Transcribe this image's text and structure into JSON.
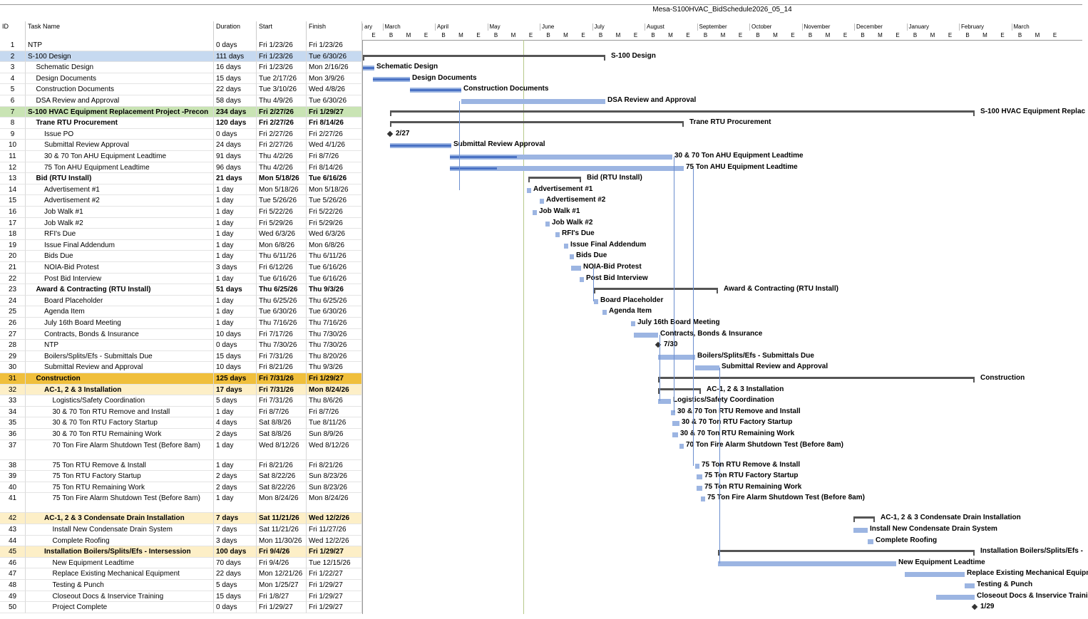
{
  "title": "Mesa-S100HVAC_BidSchedule2026_05_14",
  "columns": {
    "id": "ID",
    "name": "Task Name",
    "duration": "Duration",
    "start": "Start",
    "finish": "Finish"
  },
  "months": [
    "ary",
    "March",
    "April",
    "May",
    "June",
    "July",
    "August",
    "September",
    "October",
    "November",
    "December",
    "January",
    "February",
    "March"
  ],
  "sub_labels": [
    "B",
    "M",
    "E"
  ],
  "tasks": [
    {
      "id": "1",
      "name": "NTP",
      "dur": "0 days",
      "start": "Fri 1/23/26",
      "finish": "Fri 1/23/26",
      "lvl": 0
    },
    {
      "id": "2",
      "name": "S-100 Design",
      "dur": "111 days",
      "start": "Fri 1/23/26",
      "finish": "Tue 6/30/26",
      "lvl": 0,
      "bold": false,
      "bg": "#c6d9f0"
    },
    {
      "id": "3",
      "name": "Schematic Design",
      "dur": "16 days",
      "start": "Fri 1/23/26",
      "finish": "Mon 2/16/26",
      "lvl": 1
    },
    {
      "id": "4",
      "name": "Design Documents",
      "dur": "15 days",
      "start": "Tue 2/17/26",
      "finish": "Mon 3/9/26",
      "lvl": 1
    },
    {
      "id": "5",
      "name": "Construction Documents",
      "dur": "22 days",
      "start": "Tue 3/10/26",
      "finish": "Wed 4/8/26",
      "lvl": 1
    },
    {
      "id": "6",
      "name": "DSA Review and Approval",
      "dur": "58 days",
      "start": "Thu 4/9/26",
      "finish": "Tue 6/30/26",
      "lvl": 1
    },
    {
      "id": "7",
      "name": "S-100 HVAC Equipment Replacement Project -Precon",
      "dur": "234 days",
      "start": "Fri 2/27/26",
      "finish": "Fri 1/29/27",
      "lvl": 0,
      "bold": true,
      "bg": "#c9e4b4"
    },
    {
      "id": "8",
      "name": "Trane RTU Procurement",
      "dur": "120 days",
      "start": "Fri 2/27/26",
      "finish": "Fri 8/14/26",
      "lvl": 1,
      "bold": true
    },
    {
      "id": "9",
      "name": "Issue PO",
      "dur": "0 days",
      "start": "Fri 2/27/26",
      "finish": "Fri 2/27/26",
      "lvl": 2
    },
    {
      "id": "10",
      "name": "Submittal Review Approval",
      "dur": "24 days",
      "start": "Fri 2/27/26",
      "finish": "Wed 4/1/26",
      "lvl": 2
    },
    {
      "id": "11",
      "name": "30 & 70 Ton AHU Equipment Leadtime",
      "dur": "91 days",
      "start": "Thu 4/2/26",
      "finish": "Fri 8/7/26",
      "lvl": 2
    },
    {
      "id": "12",
      "name": "75 Ton AHU Equipment Leadtime",
      "dur": "96 days",
      "start": "Thu 4/2/26",
      "finish": "Fri 8/14/26",
      "lvl": 2
    },
    {
      "id": "13",
      "name": "Bid (RTU Install)",
      "dur": "21 days",
      "start": "Mon 5/18/26",
      "finish": "Tue 6/16/26",
      "lvl": 1,
      "bold": true
    },
    {
      "id": "14",
      "name": "Advertisement #1",
      "dur": "1 day",
      "start": "Mon 5/18/26",
      "finish": "Mon 5/18/26",
      "lvl": 2
    },
    {
      "id": "15",
      "name": "Advertisement #2",
      "dur": "1 day",
      "start": "Tue 5/26/26",
      "finish": "Tue 5/26/26",
      "lvl": 2
    },
    {
      "id": "16",
      "name": "Job Walk #1",
      "dur": "1 day",
      "start": "Fri 5/22/26",
      "finish": "Fri 5/22/26",
      "lvl": 2
    },
    {
      "id": "17",
      "name": "Job Walk #2",
      "dur": "1 day",
      "start": "Fri 5/29/26",
      "finish": "Fri 5/29/26",
      "lvl": 2
    },
    {
      "id": "18",
      "name": "RFI's Due",
      "dur": "1 day",
      "start": "Wed 6/3/26",
      "finish": "Wed 6/3/26",
      "lvl": 2
    },
    {
      "id": "19",
      "name": "Issue Final Addendum",
      "dur": "1 day",
      "start": "Mon 6/8/26",
      "finish": "Mon 6/8/26",
      "lvl": 2
    },
    {
      "id": "20",
      "name": "Bids Due",
      "dur": "1 day",
      "start": "Thu 6/11/26",
      "finish": "Thu 6/11/26",
      "lvl": 2
    },
    {
      "id": "21",
      "name": "NOIA-Bid Protest",
      "dur": "3 days",
      "start": "Fri 6/12/26",
      "finish": "Tue 6/16/26",
      "lvl": 2
    },
    {
      "id": "22",
      "name": "Post Bid Interview",
      "dur": "1 day",
      "start": "Tue 6/16/26",
      "finish": "Tue 6/16/26",
      "lvl": 2
    },
    {
      "id": "23",
      "name": "Award & Contracting (RTU Install)",
      "dur": "51 days",
      "start": "Thu 6/25/26",
      "finish": "Thu 9/3/26",
      "lvl": 1,
      "bold": true
    },
    {
      "id": "24",
      "name": "Board Placeholder",
      "dur": "1 day",
      "start": "Thu 6/25/26",
      "finish": "Thu 6/25/26",
      "lvl": 2
    },
    {
      "id": "25",
      "name": "Agenda Item",
      "dur": "1 day",
      "start": "Tue 6/30/26",
      "finish": "Tue 6/30/26",
      "lvl": 2
    },
    {
      "id": "26",
      "name": "July 16th Board Meeting",
      "dur": "1 day",
      "start": "Thu 7/16/26",
      "finish": "Thu 7/16/26",
      "lvl": 2
    },
    {
      "id": "27",
      "name": "Contracts, Bonds & Insurance",
      "dur": "10 days",
      "start": "Fri 7/17/26",
      "finish": "Thu 7/30/26",
      "lvl": 2
    },
    {
      "id": "28",
      "name": "NTP",
      "dur": "0 days",
      "start": "Thu 7/30/26",
      "finish": "Thu 7/30/26",
      "lvl": 2
    },
    {
      "id": "29",
      "name": "Boilers/Splits/Efs - Submittals Due",
      "dur": "15 days",
      "start": "Fri 7/31/26",
      "finish": "Thu 8/20/26",
      "lvl": 2
    },
    {
      "id": "30",
      "name": "Submittal Review and Approval",
      "dur": "10 days",
      "start": "Fri 8/21/26",
      "finish": "Thu 9/3/26",
      "lvl": 2
    },
    {
      "id": "31",
      "name": "Construction",
      "dur": "125 days",
      "start": "Fri 7/31/26",
      "finish": "Fri 1/29/27",
      "lvl": 1,
      "bold": true,
      "bg": "#f0bf3c"
    },
    {
      "id": "32",
      "name": "AC-1, 2 & 3 Installation",
      "dur": "17 days",
      "start": "Fri 7/31/26",
      "finish": "Mon 8/24/26",
      "lvl": 2,
      "bold": true,
      "bg": "#fdefc7"
    },
    {
      "id": "33",
      "name": "Logistics/Safety Coordination",
      "dur": "5 days",
      "start": "Fri 7/31/26",
      "finish": "Thu 8/6/26",
      "lvl": 3
    },
    {
      "id": "34",
      "name": "30 & 70 Ton RTU Remove and Install",
      "dur": "1 day",
      "start": "Fri 8/7/26",
      "finish": "Fri 8/7/26",
      "lvl": 3
    },
    {
      "id": "35",
      "name": "30 & 70 Ton RTU Factory Startup",
      "dur": "4 days",
      "start": "Sat 8/8/26",
      "finish": "Tue 8/11/26",
      "lvl": 3
    },
    {
      "id": "36",
      "name": "30 & 70 Ton RTU Remaining Work",
      "dur": "2 days",
      "start": "Sat 8/8/26",
      "finish": "Sun 8/9/26",
      "lvl": 3
    },
    {
      "id": "37",
      "name": "70 Ton Fire Alarm Shutdown Test (Before 8am)",
      "dur": "1 day",
      "start": "Wed 8/12/26",
      "finish": "Wed 8/12/26",
      "lvl": 3,
      "tall": true
    },
    {
      "id": "38",
      "name": "75 Ton RTU Remove & Install",
      "dur": "1 day",
      "start": "Fri 8/21/26",
      "finish": "Fri 8/21/26",
      "lvl": 3
    },
    {
      "id": "39",
      "name": "75 Ton RTU Factory Startup",
      "dur": "2 days",
      "start": "Sat 8/22/26",
      "finish": "Sun 8/23/26",
      "lvl": 3
    },
    {
      "id": "40",
      "name": "75 Ton RTU Remaining Work",
      "dur": "2 days",
      "start": "Sat 8/22/26",
      "finish": "Sun 8/23/26",
      "lvl": 3
    },
    {
      "id": "41",
      "name": "75 Ton Fire Alarm Shutdown Test (Before 8am)",
      "dur": "1 day",
      "start": "Mon 8/24/26",
      "finish": "Mon 8/24/26",
      "lvl": 3,
      "tall": true
    },
    {
      "id": "42",
      "name": "AC-1, 2 & 3 Condensate Drain Installation",
      "dur": "7 days",
      "start": "Sat 11/21/26",
      "finish": "Wed 12/2/26",
      "lvl": 2,
      "bold": true,
      "bg": "#fdefc7"
    },
    {
      "id": "43",
      "name": "Install New Condensate Drain System",
      "dur": "7 days",
      "start": "Sat 11/21/26",
      "finish": "Fri 11/27/26",
      "lvl": 3
    },
    {
      "id": "44",
      "name": "Complete Roofing",
      "dur": "3 days",
      "start": "Mon 11/30/26",
      "finish": "Wed 12/2/26",
      "lvl": 3
    },
    {
      "id": "45",
      "name": "Installation Boilers/Splits/Efs - Intersession",
      "dur": "100 days",
      "start": "Fri 9/4/26",
      "finish": "Fri 1/29/27",
      "lvl": 2,
      "bold": true,
      "bg": "#fdefc7"
    },
    {
      "id": "46",
      "name": "New Equipment Leadtime",
      "dur": "70 days",
      "start": "Fri 9/4/26",
      "finish": "Tue 12/15/26",
      "lvl": 3
    },
    {
      "id": "47",
      "name": "Replace Existing Mechanical Equipment",
      "dur": "22 days",
      "start": "Mon 12/21/26",
      "finish": "Fri 1/22/27",
      "lvl": 3
    },
    {
      "id": "48",
      "name": "Testing & Punch",
      "dur": "5 days",
      "start": "Mon 1/25/27",
      "finish": "Fri 1/29/27",
      "lvl": 3
    },
    {
      "id": "49",
      "name": "Closeout Docs & Inservice Training",
      "dur": "15 days",
      "start": "Fri 1/8/27",
      "finish": "Fri 1/29/27",
      "lvl": 3
    },
    {
      "id": "50",
      "name": "Project Complete",
      "dur": "0 days",
      "start": "Fri 1/29/27",
      "finish": "Fri 1/29/27",
      "lvl": 3
    }
  ],
  "gantt": [
    {
      "row": 2,
      "type": "sum",
      "x0": 0,
      "x1": 340,
      "label": "S-100 Design"
    },
    {
      "row": 3,
      "type": "bar",
      "x0": 0,
      "x1": 16,
      "p": 1,
      "label": "Schematic Design"
    },
    {
      "row": 4,
      "type": "bar",
      "x0": 14,
      "x1": 66,
      "p": 1,
      "label": "Design Documents"
    },
    {
      "row": 5,
      "type": "bar",
      "x0": 66,
      "x1": 138,
      "p": 1,
      "label": "Construction Documents"
    },
    {
      "row": 6,
      "type": "bar",
      "x0": 138,
      "x1": 340,
      "p": 0,
      "label": "DSA Review and Approval"
    },
    {
      "row": 7,
      "type": "sum",
      "x0": 38,
      "x1": 858,
      "label": "S-100 HVAC Equipment Replac"
    },
    {
      "row": 8,
      "type": "sum",
      "x0": 38,
      "x1": 450,
      "label": "Trane RTU Procurement"
    },
    {
      "row": 9,
      "type": "ms",
      "x0": 38,
      "label": "2/27"
    },
    {
      "row": 10,
      "type": "bar",
      "x0": 38,
      "x1": 124,
      "p": 1,
      "label": "Submittal Review Approval"
    },
    {
      "row": 11,
      "type": "bar",
      "x0": 122,
      "x1": 434,
      "p": 0.3,
      "label": "30 & 70 Ton AHU Equipment Leadtime"
    },
    {
      "row": 12,
      "type": "bar",
      "x0": 122,
      "x1": 450,
      "p": 0.2,
      "label": "75 Ton AHU Equipment Leadtime"
    },
    {
      "row": 13,
      "type": "sum",
      "x0": 232,
      "x1": 306,
      "label": "Bid (RTU Install)"
    },
    {
      "row": 14,
      "type": "bar",
      "x0": 230,
      "x1": 236,
      "p": 0,
      "label": "Advertisement #1"
    },
    {
      "row": 15,
      "type": "bar",
      "x0": 248,
      "x1": 254,
      "p": 0,
      "label": "Advertisement #2"
    },
    {
      "row": 16,
      "type": "bar",
      "x0": 238,
      "x1": 244,
      "p": 0,
      "label": "Job Walk #1"
    },
    {
      "row": 17,
      "type": "bar",
      "x0": 256,
      "x1": 262,
      "p": 0,
      "label": "Job Walk #2"
    },
    {
      "row": 18,
      "type": "bar",
      "x0": 270,
      "x1": 276,
      "p": 0,
      "label": "RFI's Due"
    },
    {
      "row": 19,
      "type": "bar",
      "x0": 282,
      "x1": 288,
      "p": 0,
      "label": "Issue Final Addendum"
    },
    {
      "row": 20,
      "type": "bar",
      "x0": 290,
      "x1": 296,
      "p": 0,
      "label": "Bids Due"
    },
    {
      "row": 21,
      "type": "bar",
      "x0": 292,
      "x1": 306,
      "p": 0,
      "label": "NOIA-Bid Protest"
    },
    {
      "row": 22,
      "type": "bar",
      "x0": 304,
      "x1": 310,
      "p": 0,
      "label": "Post Bid Interview"
    },
    {
      "row": 23,
      "type": "sum",
      "x0": 324,
      "x1": 498,
      "label": "Award & Contracting (RTU Install)"
    },
    {
      "row": 24,
      "type": "bar",
      "x0": 324,
      "x1": 330,
      "p": 0,
      "label": "Board Placeholder"
    },
    {
      "row": 25,
      "type": "bar",
      "x0": 336,
      "x1": 342,
      "p": 0,
      "label": "Agenda Item"
    },
    {
      "row": 26,
      "type": "bar",
      "x0": 376,
      "x1": 382,
      "p": 0,
      "label": "July 16th Board Meeting"
    },
    {
      "row": 27,
      "type": "bar",
      "x0": 380,
      "x1": 414,
      "p": 0,
      "label": "Contracts, Bonds & Insurance"
    },
    {
      "row": 28,
      "type": "ms",
      "x0": 414,
      "label": "7/30"
    },
    {
      "row": 29,
      "type": "bar",
      "x0": 414,
      "x1": 466,
      "p": 0,
      "label": "Boilers/Splits/Efs - Submittals Due"
    },
    {
      "row": 30,
      "type": "bar",
      "x0": 466,
      "x1": 500,
      "p": 0,
      "label": "Submittal Review and Approval"
    },
    {
      "row": 31,
      "type": "sum",
      "x0": 414,
      "x1": 858,
      "label": "Construction"
    },
    {
      "row": 32,
      "type": "sum",
      "x0": 414,
      "x1": 474,
      "label": "AC-1, 2 & 3 Installation"
    },
    {
      "row": 33,
      "type": "bar",
      "x0": 414,
      "x1": 432,
      "p": 0,
      "label": "Logistics/Safety Coordination"
    },
    {
      "row": 34,
      "type": "bar",
      "x0": 432,
      "x1": 438,
      "p": 0,
      "label": "30 & 70 Ton RTU Remove and Install"
    },
    {
      "row": 35,
      "type": "bar",
      "x0": 434,
      "x1": 444,
      "p": 0,
      "label": "30 & 70 Ton RTU Factory Startup"
    },
    {
      "row": 36,
      "type": "bar",
      "x0": 434,
      "x1": 442,
      "p": 0,
      "label": "30 & 70 Ton RTU Remaining Work"
    },
    {
      "row": 37,
      "type": "bar",
      "x0": 444,
      "x1": 450,
      "p": 0,
      "label": "70 Ton Fire Alarm Shutdown Test (Before 8am)"
    },
    {
      "row": 38,
      "type": "bar",
      "x0": 466,
      "x1": 472,
      "p": 0,
      "label": "75 Ton RTU Remove & Install"
    },
    {
      "row": 39,
      "type": "bar",
      "x0": 468,
      "x1": 476,
      "p": 0,
      "label": "75 Ton RTU Factory Startup"
    },
    {
      "row": 40,
      "type": "bar",
      "x0": 468,
      "x1": 476,
      "p": 0,
      "label": "75 Ton RTU Remaining Work"
    },
    {
      "row": 41,
      "type": "bar",
      "x0": 474,
      "x1": 480,
      "p": 0,
      "label": "75 Ton Fire Alarm Shutdown Test (Before 8am)"
    },
    {
      "row": 42,
      "type": "sum",
      "x0": 688,
      "x1": 718,
      "label": "AC-1, 2 & 3 Condensate Drain Installation"
    },
    {
      "row": 43,
      "type": "bar",
      "x0": 688,
      "x1": 708,
      "p": 0,
      "label": "Install New Condensate Drain System"
    },
    {
      "row": 44,
      "type": "bar",
      "x0": 708,
      "x1": 716,
      "p": 0,
      "label": "Complete Roofing"
    },
    {
      "row": 45,
      "type": "sum",
      "x0": 498,
      "x1": 858,
      "label": "Installation Boilers/Splits/Efs -"
    },
    {
      "row": 46,
      "type": "bar",
      "x0": 498,
      "x1": 748,
      "p": 0,
      "label": "New Equipment Leadtime"
    },
    {
      "row": 47,
      "type": "bar",
      "x0": 760,
      "x1": 844,
      "p": 0,
      "label": "Replace Existing Mechanical Equipm"
    },
    {
      "row": 48,
      "type": "bar",
      "x0": 844,
      "x1": 858,
      "p": 0,
      "label": "Testing & Punch"
    },
    {
      "row": 49,
      "type": "bar",
      "x0": 804,
      "x1": 858,
      "p": 0,
      "label": "Closeout Docs & Inservice Traini"
    },
    {
      "row": 50,
      "type": "ms",
      "x0": 858,
      "label": "1/29"
    }
  ],
  "colors": {
    "bar": "#9cb5e2",
    "progress": "#4a72c4",
    "summary": "#555555",
    "today": "#b6c98a"
  }
}
